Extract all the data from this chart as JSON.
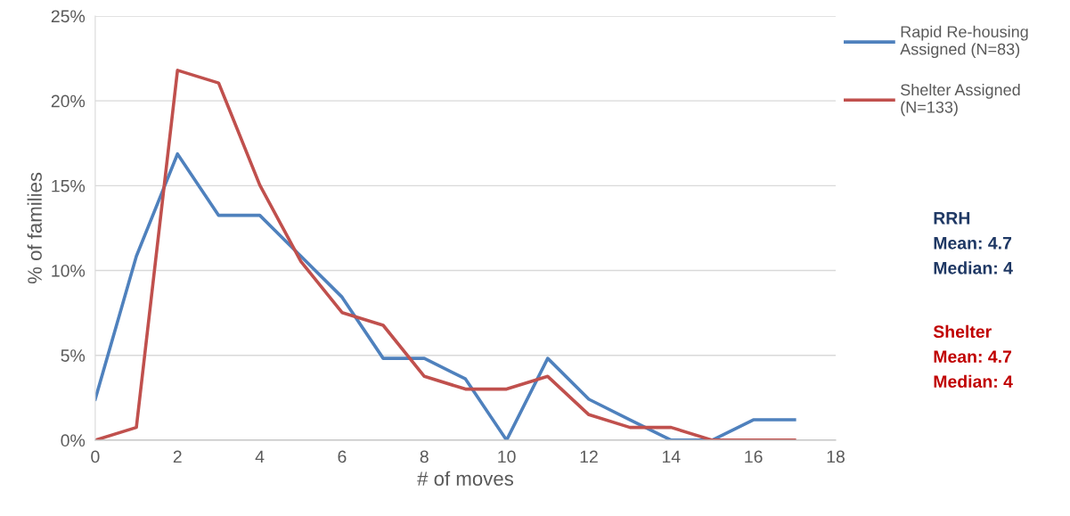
{
  "chart_data": {
    "type": "line",
    "xlabel": "# of moves",
    "ylabel": "% of families",
    "x": [
      0,
      1,
      2,
      3,
      4,
      5,
      6,
      7,
      8,
      9,
      10,
      11,
      12,
      13,
      14,
      15,
      16,
      17
    ],
    "series": [
      {
        "name": "Rapid Re-housing\nAssigned (N=83)",
        "color": "#4f81bd",
        "values": [
          2.41,
          10.84,
          16.87,
          13.25,
          13.25,
          10.84,
          8.43,
          4.82,
          4.82,
          3.61,
          0,
          4.82,
          2.41,
          1.2,
          0,
          0,
          1.2,
          1.2
        ]
      },
      {
        "name": "Shelter Assigned\n(N=133)",
        "color": "#c0504d",
        "values": [
          0,
          0.75,
          21.8,
          21.05,
          15.04,
          10.53,
          7.52,
          6.77,
          3.76,
          3.01,
          3.01,
          3.76,
          1.5,
          0.75,
          0.75,
          0,
          0,
          0
        ]
      }
    ],
    "xlim": [
      0,
      18
    ],
    "xticks": [
      0,
      2,
      4,
      6,
      8,
      10,
      12,
      14,
      16,
      18
    ],
    "ylim": [
      0,
      25
    ],
    "yticks": [
      {
        "value": 0,
        "label": "0%"
      },
      {
        "value": 5,
        "label": "5%"
      },
      {
        "value": 10,
        "label": "10%"
      },
      {
        "value": 15,
        "label": "15%"
      },
      {
        "value": 20,
        "label": "20%"
      },
      {
        "value": 25,
        "label": "25%"
      }
    ],
    "grid": "y",
    "legend": "top right",
    "marker": "none",
    "line_style": "solid",
    "annotations": [
      "RRH\nMean: 4.7\nMedian: 4",
      "Shelter\nMean: 4.7\nMedian: 4"
    ]
  }
}
